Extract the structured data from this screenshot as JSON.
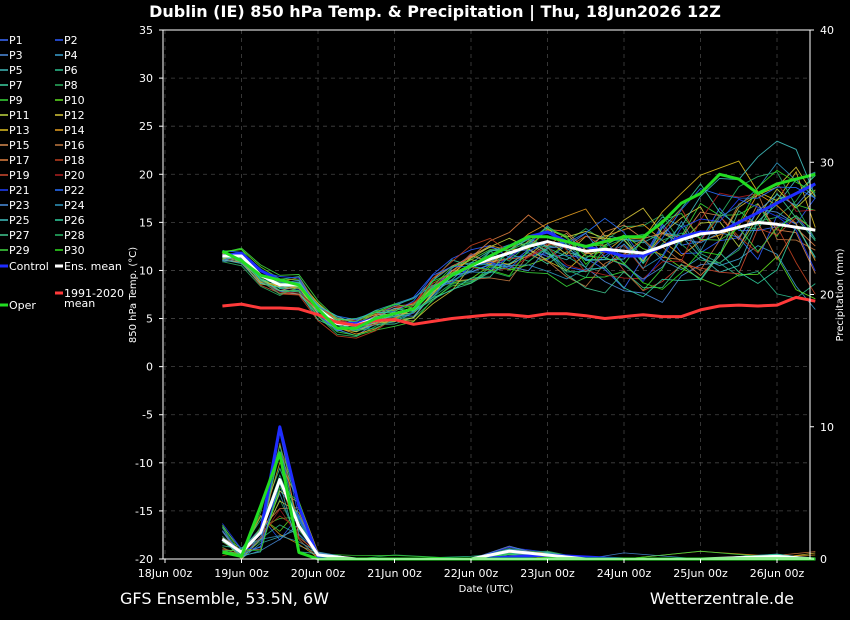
{
  "title": "Dublin  (IE)  850 hPa Temp. & Precipitation | Thu, 18Jun2026 12Z",
  "footer_left": "GFS Ensemble, 53.5N, 6W",
  "footer_right": "Wetterzentrale.de",
  "colors": {
    "control": "#1f2cff",
    "ens_mean": "#ffffff",
    "clim_mean": "#ff3a3a",
    "oper": "#22dd22"
  },
  "chart_data": {
    "type": "line",
    "xlabel": "Date (UTC)",
    "ylabel": "850 hPa Temp. (°C)",
    "y2label": "Precipitation (mm)",
    "x_tick_labels": [
      "18Jun 00z",
      "19Jun 00z",
      "20Jun 00z",
      "21Jun 00z",
      "22Jun 00z",
      "23Jun 00z",
      "24Jun 00z",
      "25Jun 00z",
      "26Jun 00z"
    ],
    "y_ticks": [
      35,
      30,
      25,
      20,
      15,
      10,
      5,
      0,
      -5,
      -10,
      -15,
      -20
    ],
    "y2_ticks": [
      40,
      30,
      20,
      10,
      0
    ],
    "ylim": [
      -20,
      35
    ],
    "y2lim": [
      0,
      40
    ],
    "x_range_days": [
      0,
      8.5
    ],
    "grid": true,
    "legend_placement": "left",
    "members": [
      {
        "name": "P1",
        "color": "#3a6bff"
      },
      {
        "name": "P2",
        "color": "#2c5bff"
      },
      {
        "name": "P3",
        "color": "#4f8ee0"
      },
      {
        "name": "P4",
        "color": "#3aa0d0"
      },
      {
        "name": "P5",
        "color": "#40b8b8"
      },
      {
        "name": "P6",
        "color": "#2ec090"
      },
      {
        "name": "P7",
        "color": "#3cd0a0"
      },
      {
        "name": "P8",
        "color": "#2bb060"
      },
      {
        "name": "P9",
        "color": "#38d838"
      },
      {
        "name": "P10",
        "color": "#60e020"
      },
      {
        "name": "P11",
        "color": "#c0d840"
      },
      {
        "name": "P12",
        "color": "#d8c838"
      },
      {
        "name": "P13",
        "color": "#e0c020"
      },
      {
        "name": "P14",
        "color": "#e8a020"
      },
      {
        "name": "P15",
        "color": "#d88a50"
      },
      {
        "name": "P16",
        "color": "#c07840"
      },
      {
        "name": "P17",
        "color": "#e08040"
      },
      {
        "name": "P18",
        "color": "#c04020"
      },
      {
        "name": "P19",
        "color": "#d04a30"
      },
      {
        "name": "P20",
        "color": "#b02020"
      },
      {
        "name": "P21",
        "color": "#2040ff"
      },
      {
        "name": "P22",
        "color": "#2870ff"
      },
      {
        "name": "P23",
        "color": "#4a90e0"
      },
      {
        "name": "P24",
        "color": "#3098c0"
      },
      {
        "name": "P25",
        "color": "#40c0c0"
      },
      {
        "name": "P26",
        "color": "#30d0a0"
      },
      {
        "name": "P27",
        "color": "#40c890"
      },
      {
        "name": "P28",
        "color": "#28b868"
      },
      {
        "name": "P29",
        "color": "#40d840"
      },
      {
        "name": "P30",
        "color": "#30e020"
      }
    ],
    "series": [
      {
        "name": "Control",
        "x": [
          0.75,
          1,
          1.25,
          1.5,
          1.75,
          2,
          2.25,
          2.5,
          2.75,
          3,
          3.25,
          3.5,
          3.75,
          4,
          4.25,
          4.5,
          4.75,
          5,
          5.25,
          5.5,
          5.75,
          6,
          6.25,
          6.5,
          6.75,
          7,
          7.25,
          7.5,
          7.75,
          8,
          8.25,
          8.5
        ],
        "y": [
          11.5,
          11.8,
          10.0,
          9.0,
          8.5,
          6.0,
          4.5,
          4.5,
          5.0,
          5.5,
          6.0,
          8.0,
          9.5,
          10.5,
          11.5,
          12.5,
          13.5,
          14.0,
          13.0,
          12.5,
          12.0,
          11.5,
          11.5,
          12.5,
          13.5,
          14.0,
          14.0,
          15.0,
          16.0,
          17.0,
          18.0,
          19.0
        ]
      },
      {
        "name": "Ens. mean",
        "x": [
          0.75,
          1,
          1.25,
          1.5,
          1.75,
          2,
          2.25,
          2.5,
          2.75,
          3,
          3.25,
          3.5,
          3.75,
          4,
          4.25,
          4.5,
          4.75,
          5,
          5.25,
          5.5,
          5.75,
          6,
          6.25,
          6.5,
          6.75,
          7,
          7.25,
          7.5,
          7.75,
          8,
          8.25,
          8.5
        ],
        "y": [
          11.5,
          11.5,
          9.5,
          8.5,
          8.5,
          6.0,
          4.5,
          4.3,
          5.0,
          5.5,
          6.0,
          8.0,
          9.5,
          10.5,
          11.2,
          11.8,
          12.5,
          13.0,
          12.5,
          12.0,
          12.2,
          12.0,
          11.8,
          12.5,
          13.2,
          13.8,
          14.0,
          14.5,
          15.0,
          14.8,
          14.5,
          14.2
        ]
      },
      {
        "name": "1991-2020 mean",
        "x": [
          0.75,
          1,
          1.25,
          1.5,
          1.75,
          2,
          2.25,
          2.5,
          2.75,
          3,
          3.25,
          3.5,
          3.75,
          4,
          4.25,
          4.5,
          4.75,
          5,
          5.25,
          5.5,
          5.75,
          6,
          6.25,
          6.5,
          6.75,
          7,
          7.25,
          7.5,
          7.75,
          8,
          8.25,
          8.5
        ],
        "y": [
          6.3,
          6.5,
          6.1,
          6.1,
          6.0,
          5.4,
          4.6,
          4.3,
          4.8,
          4.9,
          4.4,
          4.7,
          5.0,
          5.2,
          5.4,
          5.4,
          5.2,
          5.5,
          5.5,
          5.3,
          5.0,
          5.2,
          5.4,
          5.2,
          5.2,
          5.9,
          6.3,
          6.4,
          6.3,
          6.4,
          7.2,
          6.8
        ]
      },
      {
        "name": "Oper",
        "x": [
          0.75,
          1,
          1.25,
          1.5,
          1.75,
          2,
          2.25,
          2.5,
          2.75,
          3,
          3.25,
          3.5,
          3.75,
          4,
          4.25,
          4.5,
          4.75,
          5,
          5.25,
          5.5,
          5.75,
          6,
          6.25,
          6.5,
          6.75,
          7,
          7.25,
          7.5,
          7.75,
          8,
          8.25,
          8.5
        ],
        "y": [
          12.0,
          11.0,
          9.5,
          9.0,
          8.5,
          6.0,
          4.0,
          4.0,
          5.0,
          5.5,
          6.0,
          8.0,
          9.5,
          10.5,
          11.5,
          12.5,
          13.5,
          13.5,
          13.0,
          12.5,
          13.0,
          13.5,
          13.5,
          15.0,
          17.0,
          18.0,
          20.0,
          19.5,
          18.0,
          19.0,
          19.5,
          20.0
        ]
      }
    ],
    "precip_series": [
      {
        "name": "Control",
        "x": [
          0.75,
          1,
          1.25,
          1.5,
          1.75,
          2,
          2.5,
          3,
          4,
          5,
          6,
          7,
          8,
          8.5
        ],
        "y": [
          1.5,
          0.5,
          2.0,
          10.0,
          4.0,
          0.2,
          0.0,
          0.0,
          0.0,
          0.3,
          0.0,
          0.0,
          0.0,
          0.0
        ]
      },
      {
        "name": "Ens. mean",
        "x": [
          0.75,
          1,
          1.25,
          1.5,
          1.75,
          2,
          2.5,
          3,
          4,
          4.5,
          5,
          5.5,
          6,
          7,
          8,
          8.5
        ],
        "y": [
          1.5,
          0.5,
          2.0,
          6.0,
          2.5,
          0.3,
          0.0,
          0.0,
          0.0,
          0.6,
          0.3,
          0.0,
          0.0,
          0.0,
          0.2,
          0.0
        ]
      },
      {
        "name": "Oper",
        "x": [
          0.75,
          1,
          1.25,
          1.5,
          1.75,
          2,
          2.5,
          3,
          4,
          5,
          6,
          7,
          8,
          8.5
        ],
        "y": [
          0.5,
          0.2,
          4.0,
          8.0,
          0.5,
          0.0,
          0.0,
          0.0,
          0.0,
          0.0,
          0.0,
          0.0,
          0.0,
          0.0
        ]
      }
    ]
  }
}
